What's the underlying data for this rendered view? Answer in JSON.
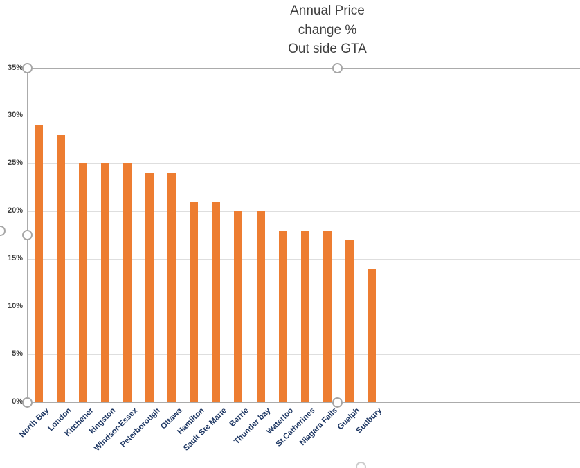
{
  "chart_data": {
    "type": "bar",
    "title": "Annual Price\nchange %\nOut side GTA",
    "categories": [
      "North Bay",
      "London",
      "Kitchener",
      "kingston",
      "Windsor-Essex",
      "Peterborough",
      "Ottawa",
      "Hamilton",
      "Sault Ste Marie",
      "Barrie",
      "Thunder bay",
      "Waterloo",
      "St.Catherines",
      "Niagara Falls",
      "Guelph",
      "Sudbury"
    ],
    "values": [
      29,
      28,
      25,
      25,
      25,
      24,
      24,
      21,
      21,
      20,
      20,
      18,
      18,
      18,
      17,
      14
    ],
    "value_unit": "%",
    "ylim": [
      0,
      35
    ],
    "ytick_labels": [
      "0%",
      "5%",
      "10%",
      "15%",
      "20%",
      "25%",
      "30%",
      "35%"
    ],
    "grid": true,
    "legend": false,
    "xlabel": "",
    "ylabel": "",
    "colors": {
      "bar": "#ED7D31",
      "title_text": "#3F3F3F",
      "ytick_text": "#3F3F3F",
      "category_text": "#1F3864",
      "gridline": "#DEDEDE",
      "plot_border": "#ABABAB"
    }
  },
  "selection": {
    "state": "plot-area-selected",
    "handle_border": "#A6A6A6",
    "handle_faint_border": "#CBCBCB",
    "handle_fill": "#FFFFFF"
  }
}
